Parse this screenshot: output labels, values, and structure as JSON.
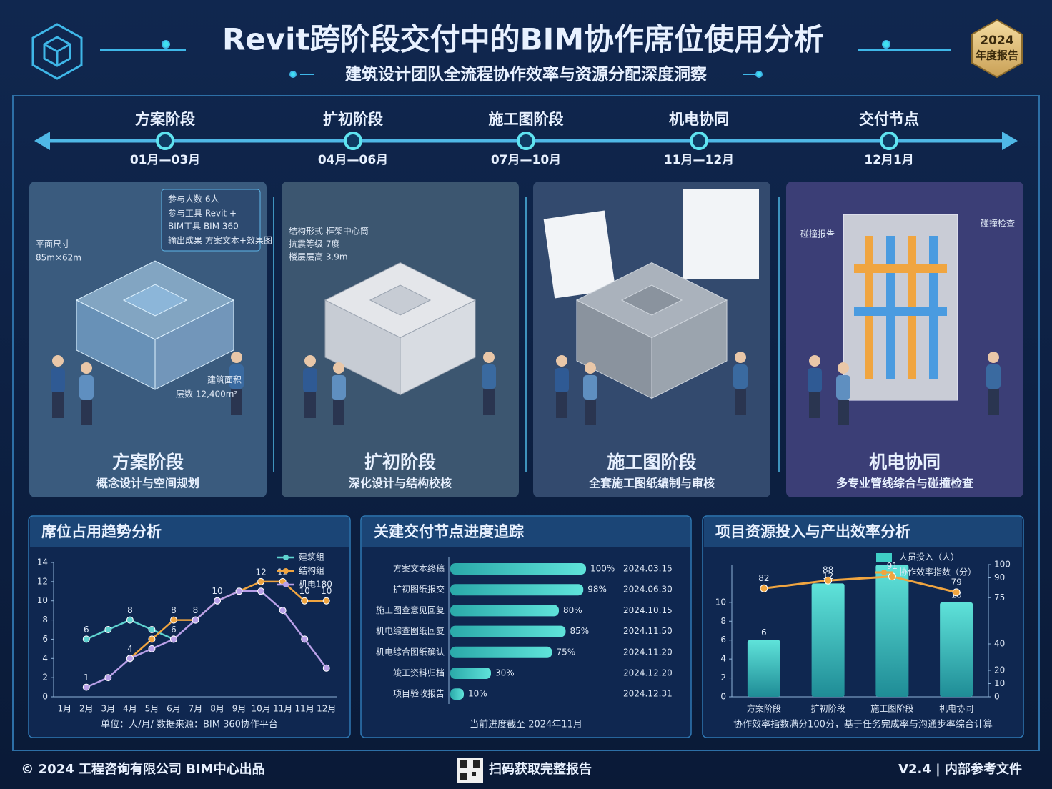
{
  "header": {
    "title": "Revit跨阶段交付中的BIM协作席位使用分析",
    "subtitle": "建筑设计团队全流程协作效率与资源分配深度洞察",
    "badge_year": "2024",
    "badge_text": "年度报告"
  },
  "timeline": [
    {
      "name": "方案阶段",
      "period": "01月—03月"
    },
    {
      "name": "扩初阶段",
      "period": "04月—06月"
    },
    {
      "name": "施工图阶段",
      "period": "07月—10月"
    },
    {
      "name": "机电协同",
      "period": "11月—12月"
    },
    {
      "name": "交付节点",
      "period": "12月1月"
    }
  ],
  "panels": [
    {
      "title": "方案阶段",
      "subtitle": "概念设计与空间规划",
      "notes": [
        "参与人数  6人",
        "参与工具  Revit +",
        "BIM工具  BIM 360",
        "输出成果  方案文本+效果图",
        "平面尺寸",
        "85m×62m",
        "建筑面积",
        "层数 12,400m²"
      ]
    },
    {
      "title": "扩初阶段",
      "subtitle": "深化设计与结构校核",
      "notes": [
        "结构形式  框架中心筒",
        "抗震等级  7度",
        "楼层层高  3.9m"
      ]
    },
    {
      "title": "施工图阶段",
      "subtitle": "全套施工图纸编制与审核",
      "notes": []
    },
    {
      "title": "机电协同",
      "subtitle": "多专业管线综合与碰撞检查",
      "notes": [
        "碰撞报告",
        "碰撞检查"
      ]
    }
  ],
  "chart_data": [
    {
      "type": "line",
      "title": "席位占用趋势分析",
      "note": "单位：人/月/ 数据来源：BIM 360协作平台",
      "categories": [
        "1月",
        "2月",
        "3月",
        "4月",
        "5月",
        "6月",
        "7月",
        "8月",
        "9月",
        "10月",
        "11月",
        "11月",
        "12月"
      ],
      "ylim": [
        0,
        14
      ],
      "yticks": [
        0,
        2,
        4,
        6,
        8,
        10,
        12,
        14
      ],
      "legend": "top-right",
      "series": [
        {
          "name": "建筑组",
          "color": "#5fd3d0",
          "values": [
            null,
            6,
            7,
            8,
            7,
            6,
            null,
            null,
            null,
            null,
            null,
            null,
            null
          ],
          "value_labels": [
            null,
            "6",
            null,
            "8",
            null,
            "6",
            null,
            null,
            null,
            null,
            null,
            null,
            null
          ]
        },
        {
          "name": "结构组",
          "color": "#f0a540",
          "values": [
            null,
            null,
            null,
            4,
            6,
            8,
            8,
            10,
            11,
            12,
            12,
            10,
            10
          ],
          "value_labels": [
            null,
            null,
            null,
            "4",
            null,
            "8",
            "8",
            null,
            null,
            "12",
            "12",
            "10",
            "10"
          ]
        },
        {
          "name": "机电180",
          "color": "#b9a0e8",
          "values": [
            null,
            1,
            2,
            4,
            5,
            6,
            8,
            10,
            11,
            11,
            9,
            6,
            3
          ],
          "value_labels": [
            null,
            "1",
            null,
            null,
            null,
            null,
            null,
            "10",
            null,
            null,
            null,
            null,
            null
          ]
        }
      ]
    },
    {
      "type": "bar",
      "orientation": "horizontal",
      "title": "关建交付节点进度追踪",
      "note": "当前进度截至 2024年11月",
      "categories": [
        "方案文本终稿",
        "扩初图纸报交",
        "施工图查意见回复",
        "机电综查图纸回复",
        "机电综合图纸确认",
        "竣工资料归档",
        "项目验收报告"
      ],
      "values": [
        100,
        98,
        80,
        85,
        75,
        30,
        10
      ],
      "value_labels": [
        "100%",
        "98%",
        "80%",
        "85%",
        "75%",
        "30%",
        "10%"
      ],
      "dates": [
        "2024.03.15",
        "2024.06.30",
        "2024.10.15",
        "2024.11.50",
        "2024.11.20",
        "2024.12.20",
        "2024.12.31"
      ],
      "xlim": [
        0,
        100
      ],
      "color": "#3fcfc6"
    },
    {
      "type": "combo",
      "title": "项目资源投入与产出效率分析",
      "note": "协作效率指数满分100分，基于任务完成率与沟通步率综合计算",
      "categories": [
        "方案阶段",
        "扩初阶段",
        "施工图阶段",
        "机电协同"
      ],
      "ylim": [
        0,
        14
      ],
      "yticks": [
        0,
        2,
        4,
        6,
        8,
        10
      ],
      "y2lim": [
        0,
        100
      ],
      "y2ticks": [
        0,
        10,
        20,
        40,
        75,
        90,
        100
      ],
      "legend": "top",
      "series": [
        {
          "name": "人员投入（人）",
          "kind": "bar",
          "color": "#3fcfc6",
          "values": [
            6,
            12,
            14,
            10
          ],
          "value_labels": [
            "6",
            "12",
            null,
            "10"
          ]
        },
        {
          "name": "协作效率指数（分）",
          "kind": "line",
          "axis": "y2",
          "color": "#f0a540",
          "values": [
            82,
            88,
            91,
            79
          ],
          "value_labels": [
            "82",
            "88",
            "91",
            "79"
          ]
        }
      ]
    }
  ],
  "footer": {
    "copyright": "© 2024 工程咨询有限公司 BIM中心出品",
    "qr_text": "扫码获取完整报告",
    "version": "V2.4 | 内部参考文件"
  }
}
